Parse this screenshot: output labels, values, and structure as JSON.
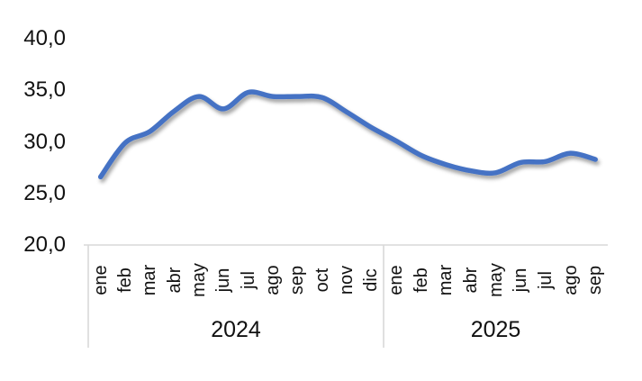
{
  "chart_data": {
    "type": "line",
    "title": "",
    "x": {
      "groups": [
        {
          "year": "2024",
          "months": [
            "ene",
            "feb",
            "mar",
            "abr",
            "may",
            "jun",
            "jul",
            "ago",
            "sep",
            "oct",
            "nov",
            "dic"
          ]
        },
        {
          "year": "2025",
          "months": [
            "ene",
            "feb",
            "mar",
            "abr",
            "may",
            "jun",
            "jul",
            "ago",
            "sep"
          ]
        }
      ]
    },
    "series": [
      {
        "color": "#4472C4",
        "values": [
          26.6,
          29.9,
          31.0,
          33.0,
          34.4,
          33.2,
          34.8,
          34.4,
          34.4,
          34.3,
          32.9,
          31.4,
          30.1,
          28.7,
          27.8,
          27.2,
          27.0,
          28.0,
          28.1,
          28.9,
          28.3
        ]
      }
    ],
    "y_axis": {
      "min": 20,
      "max": 40,
      "ticks": [
        {
          "label": "40,0",
          "value": 40
        },
        {
          "label": "35,0",
          "value": 35
        },
        {
          "label": "30,0",
          "value": 30
        },
        {
          "label": "25,0",
          "value": 25
        },
        {
          "label": "20,0",
          "value": 20
        }
      ]
    },
    "grid": false,
    "legend": false,
    "line_style": {
      "smooth": true,
      "width": 5.5,
      "shadow": true
    }
  },
  "colors": {
    "line": "#4472C4",
    "axis": "#D9D9D9",
    "text": "#111111",
    "background": "#FFFFFF"
  }
}
